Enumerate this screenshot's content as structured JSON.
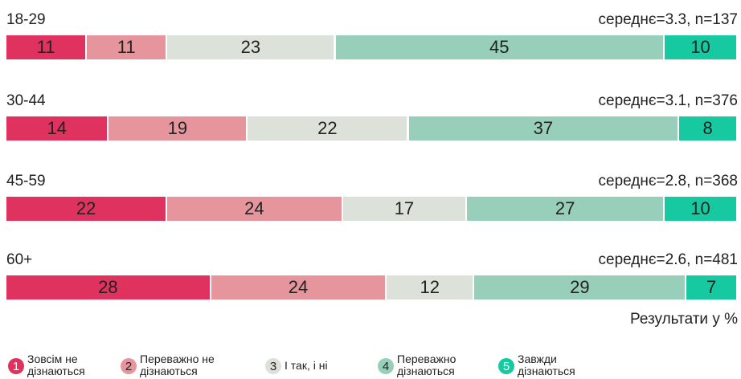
{
  "chart_data": {
    "type": "stacked_bar_horizontal",
    "categories": [
      "18-29",
      "30-44",
      "45-59",
      "60+"
    ],
    "annotations": [
      "середнє=3.3, n=137",
      "середнє=3.1, n=376",
      "середнє=2.8, n=368",
      "середнє=2.6, n=481"
    ],
    "note": "Результати у %",
    "xlim": [
      0,
      100
    ],
    "series": [
      {
        "name": "Зовсім не дізнаються",
        "code": 1,
        "color": "#e0325e",
        "values": [
          11,
          14,
          22,
          28
        ]
      },
      {
        "name": "Переважно не дізнаються",
        "code": 2,
        "color": "#e6959c",
        "values": [
          11,
          19,
          24,
          24
        ]
      },
      {
        "name": "І так, і ні",
        "code": 3,
        "color": "#dce2da",
        "values": [
          23,
          22,
          17,
          12
        ]
      },
      {
        "name": "Переважно дізнаються",
        "code": 4,
        "color": "#98cfbb",
        "values": [
          45,
          37,
          27,
          29
        ]
      },
      {
        "name": "Завжди дізнаються",
        "code": 5,
        "color": "#17c9a0",
        "values": [
          10,
          8,
          10,
          7
        ]
      }
    ],
    "legend": "bottom"
  }
}
